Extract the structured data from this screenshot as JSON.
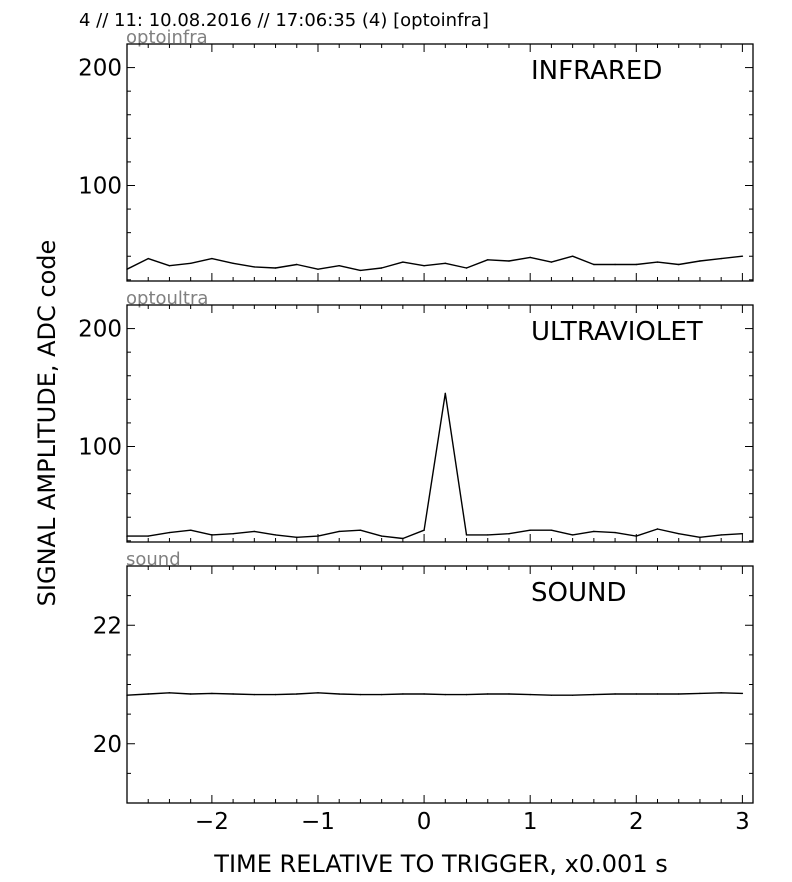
{
  "figure": {
    "title": "4 // 11:   10.08.2016 // 17:06:35 (4)  [optoinfra]",
    "ylabel": "SIGNAL AMPLITUDE,  ADC code",
    "xlabel": "TIME RELATIVE TO TRIGGER,   x0.001 s"
  },
  "chart_data": [
    {
      "type": "line",
      "title": "INFRARED",
      "tag": "optoinfra",
      "xlim": [
        -2.8,
        3.1
      ],
      "ylim": [
        19,
        220
      ],
      "yticks": [
        100,
        200
      ],
      "ytick_labels": [
        "100",
        "200"
      ],
      "xticks": [
        -2,
        -1,
        0,
        1,
        2,
        3
      ],
      "xtick_labels": [
        "−2",
        "−1",
        "0",
        "1",
        "2",
        "3"
      ],
      "show_x_tick_labels": false,
      "grid": false,
      "x": [
        -2.8,
        -2.6,
        -2.4,
        -2.2,
        -2.0,
        -1.8,
        -1.6,
        -1.4,
        -1.2,
        -1.0,
        -0.8,
        -0.6,
        -0.4,
        -0.2,
        0.0,
        0.2,
        0.4,
        0.6,
        0.8,
        1.0,
        1.2,
        1.4,
        1.6,
        1.8,
        2.0,
        2.2,
        2.4,
        2.6,
        2.8,
        3.0
      ],
      "series": [
        {
          "values": [
            29,
            38,
            32,
            34,
            38,
            34,
            31,
            30,
            33,
            29,
            32,
            28,
            30,
            35,
            32,
            34,
            30,
            37,
            36,
            39,
            35,
            40,
            33,
            33,
            33,
            35,
            33,
            36,
            38,
            40
          ]
        }
      ]
    },
    {
      "type": "line",
      "title": "ULTRAVIOLET",
      "tag": "optoultra",
      "xlim": [
        -2.8,
        3.1
      ],
      "ylim": [
        19,
        220
      ],
      "yticks": [
        100,
        200
      ],
      "ytick_labels": [
        "100",
        "200"
      ],
      "xticks": [
        -2,
        -1,
        0,
        1,
        2,
        3
      ],
      "xtick_labels": [
        "−2",
        "−1",
        "0",
        "1",
        "2",
        "3"
      ],
      "show_x_tick_labels": false,
      "grid": false,
      "x": [
        -2.8,
        -2.6,
        -2.4,
        -2.2,
        -2.0,
        -1.8,
        -1.6,
        -1.4,
        -1.2,
        -1.0,
        -0.8,
        -0.6,
        -0.4,
        -0.2,
        0.0,
        0.2,
        0.4,
        0.6,
        0.8,
        1.0,
        1.2,
        1.4,
        1.6,
        1.8,
        2.0,
        2.2,
        2.4,
        2.6,
        2.8,
        3.0
      ],
      "series": [
        {
          "values": [
            24,
            24,
            27,
            29,
            25,
            26,
            28,
            25,
            23,
            24,
            28,
            29,
            24,
            22,
            29,
            145,
            25,
            25,
            26,
            29,
            29,
            25,
            28,
            27,
            24,
            30,
            26,
            23,
            25,
            26
          ]
        }
      ]
    },
    {
      "type": "line",
      "title": "SOUND",
      "tag": "sound",
      "xlim": [
        -2.8,
        3.1
      ],
      "ylim": [
        19,
        23
      ],
      "yticks": [
        20,
        22
      ],
      "ytick_labels": [
        "20",
        "22"
      ],
      "xticks": [
        -2,
        -1,
        0,
        1,
        2,
        3
      ],
      "xtick_labels": [
        "−2",
        "−1",
        "0",
        "1",
        "2",
        "3"
      ],
      "show_x_tick_labels": true,
      "grid": false,
      "x": [
        -2.8,
        -2.6,
        -2.4,
        -2.2,
        -2.0,
        -1.8,
        -1.6,
        -1.4,
        -1.2,
        -1.0,
        -0.8,
        -0.6,
        -0.4,
        -0.2,
        0.0,
        0.2,
        0.4,
        0.6,
        0.8,
        1.0,
        1.2,
        1.4,
        1.6,
        1.8,
        2.0,
        2.2,
        2.4,
        2.6,
        2.8,
        3.0
      ],
      "series": [
        {
          "values": [
            20.82,
            20.84,
            20.86,
            20.84,
            20.85,
            20.84,
            20.83,
            20.83,
            20.84,
            20.86,
            20.84,
            20.83,
            20.83,
            20.84,
            20.84,
            20.83,
            20.83,
            20.84,
            20.84,
            20.83,
            20.82,
            20.82,
            20.83,
            20.84,
            20.84,
            20.84,
            20.84,
            20.85,
            20.86,
            20.85
          ]
        }
      ]
    }
  ]
}
